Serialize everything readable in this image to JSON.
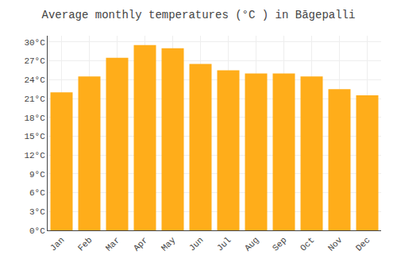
{
  "chart_data": {
    "type": "bar",
    "title": "Average monthly temperatures (°C ) in Bāgepalli",
    "categories": [
      "Jan",
      "Feb",
      "Mar",
      "Apr",
      "May",
      "Jun",
      "Jul",
      "Aug",
      "Sep",
      "Oct",
      "Nov",
      "Dec"
    ],
    "values": [
      22.0,
      24.5,
      27.5,
      29.5,
      29.0,
      26.5,
      25.5,
      25.0,
      25.0,
      24.5,
      22.5,
      21.5
    ],
    "color": "#FFAD1A",
    "ylim": [
      0,
      31
    ],
    "yticks": [
      {
        "value": 0,
        "label": "0°C"
      },
      {
        "value": 3,
        "label": "3°C"
      },
      {
        "value": 6,
        "label": "6°C"
      },
      {
        "value": 9,
        "label": "9°C"
      },
      {
        "value": 12,
        "label": "12°C"
      },
      {
        "value": 15,
        "label": "15°C"
      },
      {
        "value": 18,
        "label": "18°C"
      },
      {
        "value": 21,
        "label": "21°C"
      },
      {
        "value": 24,
        "label": "24°C"
      },
      {
        "value": 27,
        "label": "27°C"
      },
      {
        "value": 30,
        "label": "30°C"
      }
    ],
    "grid": true
  }
}
